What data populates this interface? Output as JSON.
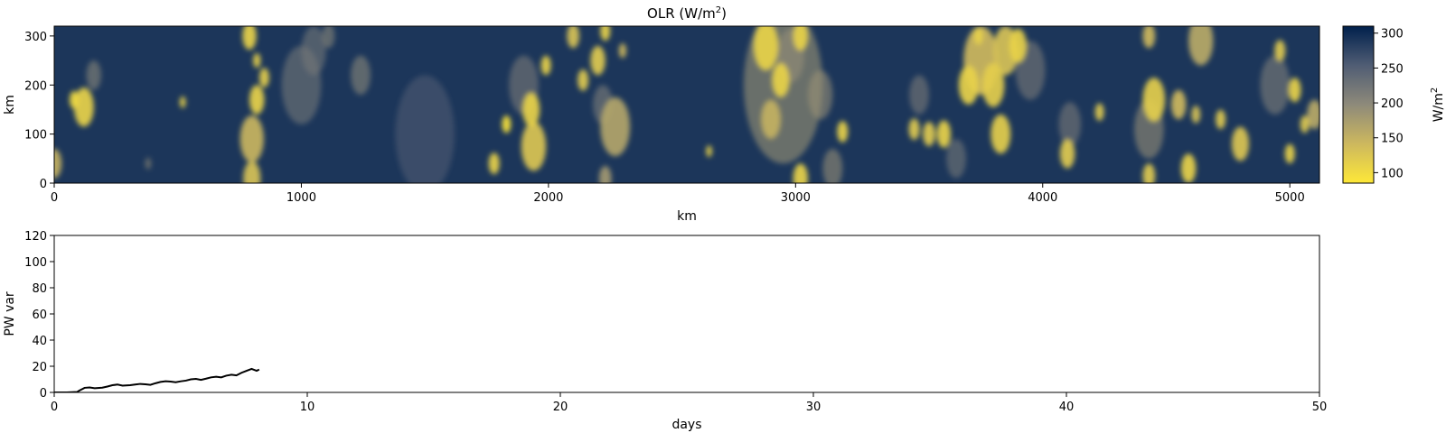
{
  "chart_data": [
    {
      "type": "heatmap",
      "title_main": "OLR (W/m",
      "title_sup": "2",
      "title_end": ")",
      "xlabel": "km",
      "ylabel": "km",
      "xlim": [
        0,
        5120
      ],
      "ylim": [
        0,
        320
      ],
      "xticks": [
        0,
        1000,
        2000,
        3000,
        4000,
        5000
      ],
      "yticks": [
        0,
        100,
        200,
        300
      ],
      "colormap": "cividis_r",
      "colorbar": {
        "label_main": "W/m",
        "label_sup": "2",
        "range": [
          85,
          310
        ],
        "ticks": [
          100,
          150,
          200,
          250,
          300
        ],
        "low_color": "#FEE838",
        "high_color": "#00204C"
      },
      "clear_sky_value": 290,
      "features": [
        {
          "x": 120,
          "y": 155,
          "r": 40,
          "v": 110
        },
        {
          "x": 80,
          "y": 170,
          "r": 18,
          "v": 100
        },
        {
          "x": 0,
          "y": 40,
          "r": 30,
          "v": 150
        },
        {
          "x": 160,
          "y": 220,
          "r": 30,
          "v": 200
        },
        {
          "x": 380,
          "y": 40,
          "r": 12,
          "v": 190
        },
        {
          "x": 520,
          "y": 165,
          "r": 12,
          "v": 110
        },
        {
          "x": 790,
          "y": 300,
          "r": 28,
          "v": 110
        },
        {
          "x": 820,
          "y": 250,
          "r": 15,
          "v": 110
        },
        {
          "x": 850,
          "y": 215,
          "r": 20,
          "v": 115
        },
        {
          "x": 820,
          "y": 170,
          "r": 30,
          "v": 110
        },
        {
          "x": 800,
          "y": 90,
          "r": 48,
          "v": 145
        },
        {
          "x": 800,
          "y": 10,
          "r": 35,
          "v": 130
        },
        {
          "x": 1000,
          "y": 200,
          "r": 80,
          "v": 220
        },
        {
          "x": 1050,
          "y": 270,
          "r": 50,
          "v": 220
        },
        {
          "x": 1110,
          "y": 300,
          "r": 25,
          "v": 200
        },
        {
          "x": 1240,
          "y": 220,
          "r": 40,
          "v": 200
        },
        {
          "x": 1500,
          "y": 100,
          "r": 120,
          "v": 255
        },
        {
          "x": 1780,
          "y": 40,
          "r": 22,
          "v": 110
        },
        {
          "x": 1830,
          "y": 120,
          "r": 18,
          "v": 90
        },
        {
          "x": 1930,
          "y": 150,
          "r": 35,
          "v": 110
        },
        {
          "x": 1940,
          "y": 75,
          "r": 50,
          "v": 125
        },
        {
          "x": 1900,
          "y": 200,
          "r": 60,
          "v": 215
        },
        {
          "x": 1990,
          "y": 240,
          "r": 20,
          "v": 110
        },
        {
          "x": 2100,
          "y": 300,
          "r": 25,
          "v": 130
        },
        {
          "x": 2140,
          "y": 210,
          "r": 22,
          "v": 120
        },
        {
          "x": 2200,
          "y": 250,
          "r": 30,
          "v": 120
        },
        {
          "x": 2230,
          "y": 310,
          "r": 20,
          "v": 110
        },
        {
          "x": 2220,
          "y": 160,
          "r": 40,
          "v": 210
        },
        {
          "x": 2270,
          "y": 115,
          "r": 60,
          "v": 165
        },
        {
          "x": 2300,
          "y": 270,
          "r": 15,
          "v": 140
        },
        {
          "x": 2230,
          "y": 10,
          "r": 25,
          "v": 180
        },
        {
          "x": 2650,
          "y": 65,
          "r": 12,
          "v": 110
        },
        {
          "x": 2950,
          "y": 200,
          "r": 160,
          "v": 185
        },
        {
          "x": 2880,
          "y": 280,
          "r": 50,
          "v": 110
        },
        {
          "x": 2980,
          "y": 260,
          "r": 55,
          "v": 200
        },
        {
          "x": 2940,
          "y": 210,
          "r": 35,
          "v": 110
        },
        {
          "x": 2900,
          "y": 130,
          "r": 40,
          "v": 150
        },
        {
          "x": 3020,
          "y": 300,
          "r": 30,
          "v": 110
        },
        {
          "x": 3020,
          "y": 10,
          "r": 30,
          "v": 110
        },
        {
          "x": 3100,
          "y": 180,
          "r": 50,
          "v": 190
        },
        {
          "x": 3190,
          "y": 105,
          "r": 22,
          "v": 110
        },
        {
          "x": 3150,
          "y": 30,
          "r": 40,
          "v": 190
        },
        {
          "x": 3500,
          "y": 180,
          "r": 40,
          "v": 215
        },
        {
          "x": 3600,
          "y": 100,
          "r": 28,
          "v": 110
        },
        {
          "x": 3480,
          "y": 110,
          "r": 22,
          "v": 120
        },
        {
          "x": 3540,
          "y": 100,
          "r": 25,
          "v": 120
        },
        {
          "x": 3700,
          "y": 200,
          "r": 40,
          "v": 110
        },
        {
          "x": 3750,
          "y": 250,
          "r": 70,
          "v": 140
        },
        {
          "x": 3800,
          "y": 200,
          "r": 45,
          "v": 115
        },
        {
          "x": 3850,
          "y": 270,
          "r": 50,
          "v": 130
        },
        {
          "x": 3900,
          "y": 280,
          "r": 35,
          "v": 110
        },
        {
          "x": 3830,
          "y": 100,
          "r": 40,
          "v": 115
        },
        {
          "x": 3740,
          "y": 300,
          "r": 18,
          "v": 110
        },
        {
          "x": 3950,
          "y": 230,
          "r": 60,
          "v": 215
        },
        {
          "x": 3650,
          "y": 50,
          "r": 40,
          "v": 220
        },
        {
          "x": 4100,
          "y": 60,
          "r": 30,
          "v": 120
        },
        {
          "x": 4110,
          "y": 120,
          "r": 45,
          "v": 215
        },
        {
          "x": 4230,
          "y": 145,
          "r": 18,
          "v": 120
        },
        {
          "x": 4430,
          "y": 15,
          "r": 25,
          "v": 120
        },
        {
          "x": 4450,
          "y": 170,
          "r": 45,
          "v": 115
        },
        {
          "x": 4430,
          "y": 110,
          "r": 60,
          "v": 190
        },
        {
          "x": 4590,
          "y": 30,
          "r": 30,
          "v": 110
        },
        {
          "x": 4550,
          "y": 160,
          "r": 30,
          "v": 140
        },
        {
          "x": 4620,
          "y": 140,
          "r": 18,
          "v": 130
        },
        {
          "x": 4640,
          "y": 290,
          "r": 50,
          "v": 160
        },
        {
          "x": 4720,
          "y": 130,
          "r": 20,
          "v": 120
        },
        {
          "x": 4800,
          "y": 80,
          "r": 35,
          "v": 125
        },
        {
          "x": 4960,
          "y": 270,
          "r": 22,
          "v": 120
        },
        {
          "x": 4940,
          "y": 200,
          "r": 60,
          "v": 210
        },
        {
          "x": 5020,
          "y": 190,
          "r": 25,
          "v": 110
        },
        {
          "x": 5060,
          "y": 120,
          "r": 18,
          "v": 120
        },
        {
          "x": 5100,
          "y": 140,
          "r": 30,
          "v": 160
        },
        {
          "x": 4430,
          "y": 300,
          "r": 25,
          "v": 140
        },
        {
          "x": 5000,
          "y": 60,
          "r": 20,
          "v": 110
        }
      ]
    },
    {
      "type": "line",
      "xlabel": "days",
      "ylabel": "PW var",
      "xlim": [
        0,
        50
      ],
      "ylim": [
        0,
        120
      ],
      "xticks": [
        0,
        10,
        20,
        30,
        40,
        50
      ],
      "yticks": [
        0,
        20,
        40,
        60,
        80,
        100,
        120
      ],
      "line_color": "#000000",
      "x": [
        0,
        0.5,
        0.9,
        1.0,
        1.2,
        1.4,
        1.6,
        1.9,
        2.1,
        2.3,
        2.5,
        2.7,
        3.0,
        3.2,
        3.4,
        3.6,
        3.8,
        4.0,
        4.2,
        4.4,
        4.6,
        4.8,
        5.0,
        5.2,
        5.4,
        5.6,
        5.8,
        6.0,
        6.2,
        6.4,
        6.6,
        6.8,
        7.0,
        7.2,
        7.4,
        7.6,
        7.8,
        8.0,
        8.1
      ],
      "y": [
        0,
        0,
        0.3,
        1.5,
        3.5,
        3.8,
        3.2,
        3.6,
        4.5,
        5.5,
        6.0,
        5.2,
        5.5,
        6.0,
        6.5,
        6.2,
        5.8,
        7.0,
        8.0,
        8.5,
        8.3,
        7.8,
        8.5,
        9.0,
        10.0,
        10.3,
        9.6,
        10.5,
        11.5,
        12.0,
        11.5,
        12.8,
        13.5,
        13.0,
        15.0,
        16.5,
        18.0,
        16.5,
        17.5
      ]
    }
  ]
}
